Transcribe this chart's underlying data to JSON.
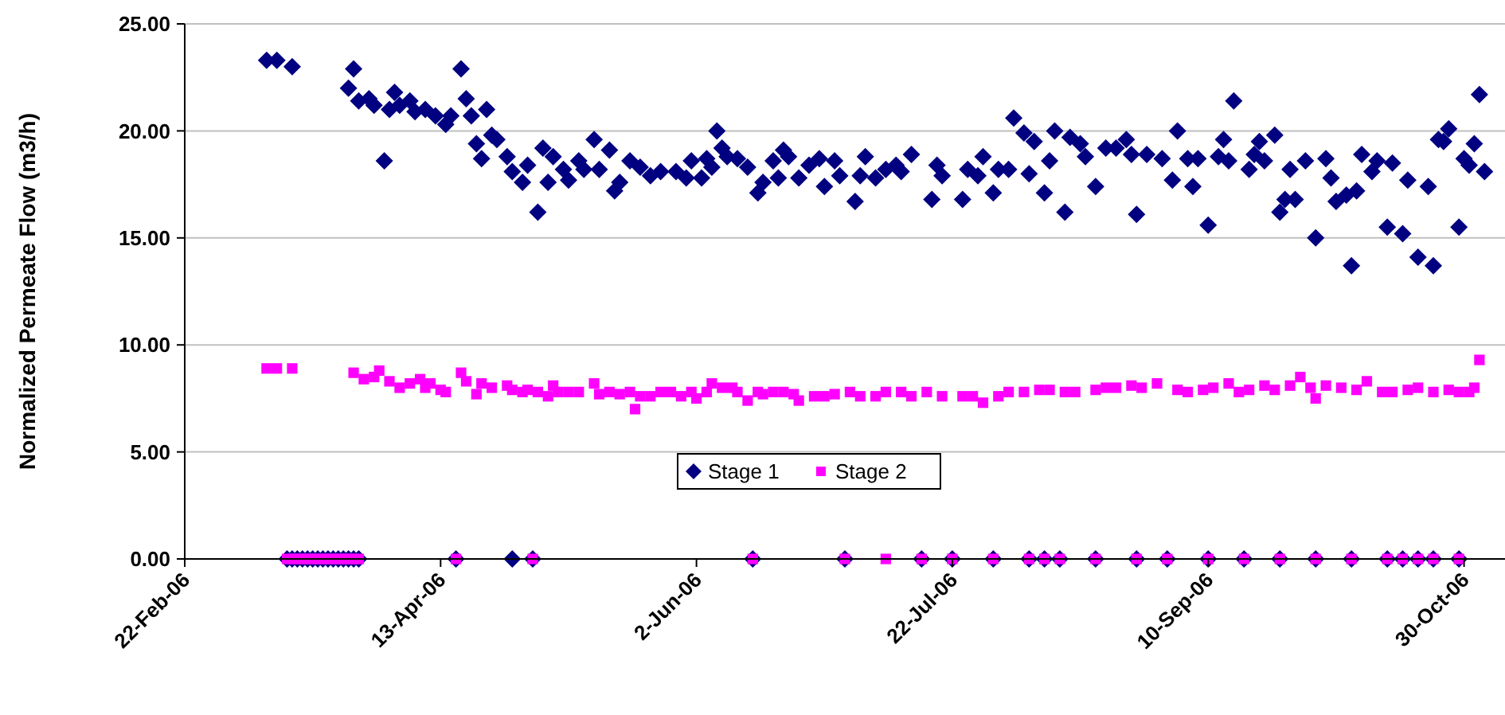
{
  "chart_data": {
    "type": "scatter",
    "ylabel": "Normalized Permeate Flow (m3/h)",
    "xlim": [
      "2006-02-22",
      "2006-11-07"
    ],
    "xticks": [
      {
        "value": "2006-02-22",
        "label": "22-Feb-06"
      },
      {
        "value": "2006-04-13",
        "label": "13-Apr-06"
      },
      {
        "value": "2006-06-02",
        "label": "2-Jun-06"
      },
      {
        "value": "2006-07-22",
        "label": "22-Jul-06"
      },
      {
        "value": "2006-09-10",
        "label": "10-Sep-06"
      },
      {
        "value": "2006-10-30",
        "label": "30-Oct-06"
      }
    ],
    "ylim": [
      0,
      25
    ],
    "yticks": [
      {
        "value": 0,
        "label": "0.00"
      },
      {
        "value": 5,
        "label": "5.00"
      },
      {
        "value": 10,
        "label": "10.00"
      },
      {
        "value": 15,
        "label": "15.00"
      },
      {
        "value": 20,
        "label": "20.00"
      },
      {
        "value": 25,
        "label": "25.00"
      }
    ],
    "grid": "y",
    "legend": "bottom",
    "series": [
      {
        "name": "Stage 1",
        "color": "#000080",
        "marker": "diamond",
        "x": [
          "2006-03-10",
          "2006-03-12",
          "2006-03-15",
          "2006-03-26",
          "2006-03-27",
          "2006-03-28",
          "2006-03-30",
          "2006-03-31",
          "2006-04-02",
          "2006-04-03",
          "2006-04-04",
          "2006-04-05",
          "2006-04-07",
          "2006-04-08",
          "2006-04-10",
          "2006-04-12",
          "2006-04-14",
          "2006-04-15",
          "2006-04-17",
          "2006-04-18",
          "2006-04-19",
          "2006-04-20",
          "2006-04-21",
          "2006-04-22",
          "2006-04-23",
          "2006-04-24",
          "2006-04-26",
          "2006-04-27",
          "2006-04-29",
          "2006-04-30",
          "2006-05-02",
          "2006-05-03",
          "2006-05-04",
          "2006-05-05",
          "2006-05-07",
          "2006-05-08",
          "2006-05-10",
          "2006-05-11",
          "2006-05-13",
          "2006-05-14",
          "2006-05-16",
          "2006-05-17",
          "2006-05-18",
          "2006-05-20",
          "2006-05-22",
          "2006-05-24",
          "2006-05-26",
          "2006-05-29",
          "2006-05-31",
          "2006-06-01",
          "2006-06-03",
          "2006-06-04",
          "2006-06-05",
          "2006-06-06",
          "2006-06-07",
          "2006-06-08",
          "2006-06-10",
          "2006-06-12",
          "2006-06-14",
          "2006-06-15",
          "2006-06-17",
          "2006-06-18",
          "2006-06-19",
          "2006-06-20",
          "2006-06-22",
          "2006-06-24",
          "2006-06-26",
          "2006-06-27",
          "2006-06-29",
          "2006-06-30",
          "2006-07-03",
          "2006-07-04",
          "2006-07-05",
          "2006-07-07",
          "2006-07-09",
          "2006-07-11",
          "2006-07-12",
          "2006-07-14",
          "2006-07-18",
          "2006-07-19",
          "2006-07-20",
          "2006-07-24",
          "2006-07-25",
          "2006-07-27",
          "2006-07-28",
          "2006-07-30",
          "2006-07-31",
          "2006-08-02",
          "2006-08-03",
          "2006-08-05",
          "2006-08-06",
          "2006-08-07",
          "2006-08-09",
          "2006-08-10",
          "2006-08-11",
          "2006-08-13",
          "2006-08-14",
          "2006-08-16",
          "2006-08-17",
          "2006-08-19",
          "2006-08-21",
          "2006-08-23",
          "2006-08-25",
          "2006-08-26",
          "2006-08-27",
          "2006-08-29",
          "2006-09-01",
          "2006-09-03",
          "2006-09-04",
          "2006-09-06",
          "2006-09-07",
          "2006-09-08",
          "2006-09-10",
          "2006-09-12",
          "2006-09-13",
          "2006-09-14",
          "2006-09-15",
          "2006-09-18",
          "2006-09-19",
          "2006-09-20",
          "2006-09-21",
          "2006-09-23",
          "2006-09-24",
          "2006-09-25",
          "2006-09-26",
          "2006-09-27",
          "2006-09-29",
          "2006-10-01",
          "2006-10-03",
          "2006-10-04",
          "2006-10-05",
          "2006-10-07",
          "2006-10-08",
          "2006-10-09",
          "2006-10-10",
          "2006-10-12",
          "2006-10-13",
          "2006-10-15",
          "2006-10-16",
          "2006-10-18",
          "2006-10-19",
          "2006-10-21",
          "2006-10-23",
          "2006-10-24",
          "2006-10-25",
          "2006-10-26",
          "2006-10-27",
          "2006-10-29",
          "2006-10-30",
          "2006-10-31",
          "2006-11-01",
          "2006-11-02",
          "2006-11-03",
          "2006-03-14",
          "2006-03-15",
          "2006-03-16",
          "2006-03-17",
          "2006-03-18",
          "2006-03-19",
          "2006-03-20",
          "2006-03-21",
          "2006-03-22",
          "2006-03-23",
          "2006-03-24",
          "2006-03-25",
          "2006-03-26",
          "2006-03-27",
          "2006-03-28",
          "2006-04-16",
          "2006-04-27",
          "2006-05-01",
          "2006-06-13",
          "2006-07-01",
          "2006-07-16",
          "2006-07-22",
          "2006-07-30",
          "2006-08-06",
          "2006-08-09",
          "2006-08-12",
          "2006-08-19",
          "2006-08-27",
          "2006-09-02",
          "2006-09-10",
          "2006-09-17",
          "2006-09-24",
          "2006-10-01",
          "2006-10-08",
          "2006-10-15",
          "2006-10-18",
          "2006-10-21",
          "2006-10-24",
          "2006-10-29"
        ],
        "values": [
          23.3,
          23.3,
          23.0,
          22.0,
          22.9,
          21.4,
          21.5,
          21.2,
          18.6,
          21.0,
          21.8,
          21.2,
          21.4,
          20.9,
          21.0,
          20.7,
          20.3,
          20.7,
          22.9,
          21.5,
          20.7,
          19.4,
          18.7,
          21.0,
          19.8,
          19.6,
          18.8,
          18.1,
          17.6,
          18.4,
          16.2,
          19.2,
          17.6,
          18.8,
          18.2,
          17.7,
          18.6,
          18.2,
          19.6,
          18.2,
          19.1,
          17.2,
          17.6,
          18.6,
          18.3,
          17.9,
          18.1,
          18.1,
          17.8,
          18.6,
          17.8,
          18.7,
          18.3,
          20.0,
          19.2,
          18.8,
          18.7,
          18.3,
          17.1,
          17.6,
          18.6,
          17.8,
          19.1,
          18.8,
          17.8,
          18.4,
          18.7,
          17.4,
          18.6,
          17.9,
          16.7,
          17.9,
          18.8,
          17.8,
          18.2,
          18.4,
          18.1,
          18.9,
          16.8,
          18.4,
          17.9,
          16.8,
          18.2,
          17.9,
          18.8,
          17.1,
          18.2,
          18.2,
          20.6,
          19.9,
          18.0,
          19.5,
          17.1,
          18.6,
          20.0,
          16.2,
          19.7,
          19.4,
          18.8,
          17.4,
          19.2,
          19.2,
          19.6,
          18.9,
          16.1,
          18.9,
          18.7,
          17.7,
          20.0,
          18.7,
          17.4,
          18.7,
          15.6,
          18.8,
          19.6,
          18.6,
          21.4,
          18.2,
          18.9,
          19.5,
          18.6,
          19.8,
          16.2,
          16.8,
          18.2,
          16.8,
          18.6,
          15.0,
          18.7,
          17.8,
          16.7,
          17.0,
          13.7,
          17.2,
          18.9,
          18.1,
          18.6,
          15.5,
          18.5,
          15.2,
          17.7,
          14.1,
          17.4,
          13.7,
          19.6,
          19.5,
          20.1,
          15.5,
          18.7,
          18.4,
          19.4,
          21.7,
          18.1,
          0,
          0,
          0,
          0,
          0,
          0,
          0,
          0,
          0,
          0,
          0,
          0,
          0,
          0,
          0,
          0,
          0,
          0,
          0,
          0,
          0,
          0,
          0,
          0,
          0,
          0,
          0,
          0,
          0,
          0,
          0,
          0,
          0,
          0,
          0,
          0,
          0,
          0,
          0
        ]
      },
      {
        "name": "Stage 2",
        "color": "#ff00ff",
        "marker": "square",
        "x": [
          "2006-03-10",
          "2006-03-12",
          "2006-03-15",
          "2006-03-27",
          "2006-03-29",
          "2006-03-31",
          "2006-04-01",
          "2006-04-03",
          "2006-04-05",
          "2006-04-07",
          "2006-04-09",
          "2006-04-10",
          "2006-04-11",
          "2006-04-13",
          "2006-04-14",
          "2006-04-17",
          "2006-04-18",
          "2006-04-20",
          "2006-04-21",
          "2006-04-23",
          "2006-04-26",
          "2006-04-27",
          "2006-04-29",
          "2006-04-30",
          "2006-05-02",
          "2006-05-04",
          "2006-05-05",
          "2006-05-06",
          "2006-05-08",
          "2006-05-10",
          "2006-05-13",
          "2006-05-14",
          "2006-05-16",
          "2006-05-18",
          "2006-05-20",
          "2006-05-21",
          "2006-05-22",
          "2006-05-24",
          "2006-05-26",
          "2006-05-28",
          "2006-05-30",
          "2006-06-01",
          "2006-06-02",
          "2006-06-04",
          "2006-06-05",
          "2006-06-07",
          "2006-06-09",
          "2006-06-10",
          "2006-06-12",
          "2006-06-14",
          "2006-06-15",
          "2006-06-17",
          "2006-06-19",
          "2006-06-21",
          "2006-06-22",
          "2006-06-25",
          "2006-06-27",
          "2006-06-29",
          "2006-07-02",
          "2006-07-04",
          "2006-07-07",
          "2006-07-09",
          "2006-07-12",
          "2006-07-14",
          "2006-07-17",
          "2006-07-20",
          "2006-07-24",
          "2006-07-26",
          "2006-07-28",
          "2006-07-31",
          "2006-08-02",
          "2006-08-05",
          "2006-08-08",
          "2006-08-10",
          "2006-08-13",
          "2006-08-15",
          "2006-08-19",
          "2006-08-21",
          "2006-08-23",
          "2006-08-26",
          "2006-08-28",
          "2006-08-31",
          "2006-09-04",
          "2006-09-06",
          "2006-09-09",
          "2006-09-11",
          "2006-09-14",
          "2006-09-16",
          "2006-09-18",
          "2006-09-21",
          "2006-09-23",
          "2006-09-26",
          "2006-09-28",
          "2006-09-30",
          "2006-10-01",
          "2006-10-03",
          "2006-10-06",
          "2006-10-09",
          "2006-10-11",
          "2006-10-14",
          "2006-10-16",
          "2006-10-19",
          "2006-10-21",
          "2006-10-24",
          "2006-10-27",
          "2006-10-29",
          "2006-10-31",
          "2006-11-01",
          "2006-11-02",
          "2006-03-14",
          "2006-03-15",
          "2006-03-16",
          "2006-03-17",
          "2006-03-18",
          "2006-03-19",
          "2006-03-20",
          "2006-03-21",
          "2006-03-22",
          "2006-03-23",
          "2006-03-24",
          "2006-03-25",
          "2006-03-26",
          "2006-03-27",
          "2006-03-28",
          "2006-04-16",
          "2006-05-01",
          "2006-06-13",
          "2006-07-01",
          "2006-07-09",
          "2006-07-16",
          "2006-07-22",
          "2006-07-30",
          "2006-08-06",
          "2006-08-09",
          "2006-08-12",
          "2006-08-19",
          "2006-08-27",
          "2006-09-02",
          "2006-09-10",
          "2006-09-17",
          "2006-09-24",
          "2006-10-01",
          "2006-10-08",
          "2006-10-15",
          "2006-10-18",
          "2006-10-21",
          "2006-10-24",
          "2006-10-29"
        ],
        "values": [
          8.9,
          8.9,
          8.9,
          8.7,
          8.4,
          8.5,
          8.8,
          8.3,
          8.0,
          8.2,
          8.4,
          8.0,
          8.2,
          7.9,
          7.8,
          8.7,
          8.3,
          7.7,
          8.2,
          8.0,
          8.1,
          7.9,
          7.8,
          7.9,
          7.8,
          7.6,
          8.1,
          7.8,
          7.8,
          7.8,
          8.2,
          7.7,
          7.8,
          7.7,
          7.8,
          7.0,
          7.6,
          7.6,
          7.8,
          7.8,
          7.6,
          7.8,
          7.5,
          7.8,
          8.2,
          8.0,
          8.0,
          7.8,
          7.4,
          7.8,
          7.7,
          7.8,
          7.8,
          7.7,
          7.4,
          7.6,
          7.6,
          7.7,
          7.8,
          7.6,
          7.6,
          7.8,
          7.8,
          7.6,
          7.8,
          7.6,
          7.6,
          7.6,
          7.3,
          7.6,
          7.8,
          7.8,
          7.9,
          7.9,
          7.8,
          7.8,
          7.9,
          8.0,
          8.0,
          8.1,
          8.0,
          8.2,
          7.9,
          7.8,
          7.9,
          8.0,
          8.2,
          7.8,
          7.9,
          8.1,
          7.9,
          8.1,
          8.5,
          8.0,
          7.5,
          8.1,
          8.0,
          7.9,
          8.3,
          7.8,
          7.8,
          7.9,
          8.0,
          7.8,
          7.9,
          7.8,
          7.8,
          8.0,
          9.3,
          0,
          0,
          0,
          0,
          0,
          0,
          0,
          0,
          0,
          0,
          0,
          0,
          0,
          0,
          0,
          0,
          0,
          0,
          0,
          0,
          0,
          0,
          0,
          0,
          0,
          0,
          0,
          0,
          0,
          0,
          0,
          0,
          0,
          0,
          0,
          0,
          0,
          0,
          0
        ]
      }
    ]
  }
}
